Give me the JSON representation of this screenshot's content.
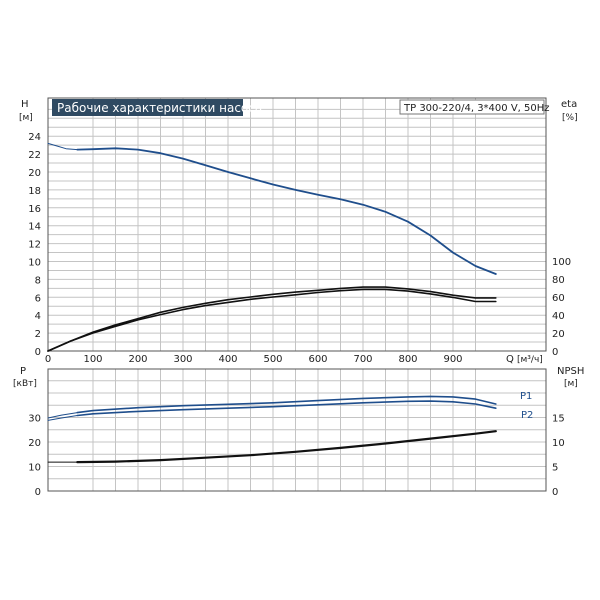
{
  "chart_data": [
    {
      "type": "line",
      "title": "Рабочие характеристики насоса",
      "model_label": "TP 300-220/4, 3*400 V, 50Hz",
      "xlabel": "Q [м³/ч]",
      "x_unit": "[м³/ч]",
      "x_ticks": [
        "0",
        "100",
        "200",
        "300",
        "400",
        "500",
        "600",
        "700",
        "800",
        "900"
      ],
      "xlim": [
        0,
        1000
      ],
      "left_axis": {
        "name": "H",
        "unit": "[м]",
        "ylim": [
          0,
          26
        ],
        "ticks": [
          "0",
          "2",
          "4",
          "6",
          "8",
          "10",
          "12",
          "14",
          "16",
          "18",
          "20",
          "22",
          "24"
        ]
      },
      "right_axis": {
        "name": "eta",
        "unit": "[%]",
        "ylim": [
          0,
          100
        ],
        "ticks": [
          "0",
          "20",
          "40",
          "60",
          "80",
          "100"
        ]
      },
      "grid": true,
      "series": [
        {
          "axis": "left",
          "color": "#1f4e8c",
          "style": "solid",
          "x": [
            65,
            100,
            150,
            200,
            250,
            300,
            350,
            400,
            450,
            500,
            550,
            600,
            650,
            700,
            750,
            800,
            850,
            900,
            950,
            995
          ],
          "y": [
            22.5,
            22.55,
            22.65,
            22.5,
            22.1,
            21.5,
            20.75,
            20.0,
            19.3,
            18.6,
            18.0,
            17.45,
            16.95,
            16.35,
            15.55,
            14.45,
            12.9,
            11.0,
            9.5,
            8.6
          ]
        },
        {
          "axis": "left",
          "color": "#1f4e8c",
          "style": "thin",
          "x": [
            0,
            20,
            40,
            65
          ],
          "y": [
            23.2,
            22.9,
            22.6,
            22.5
          ]
        },
        {
          "axis": "right",
          "color": "#111111",
          "style": "solid",
          "x": [
            0,
            50,
            100,
            150,
            200,
            250,
            300,
            350,
            400,
            450,
            500,
            550,
            600,
            650,
            700,
            750,
            800,
            850,
            900,
            950,
            995
          ],
          "y": [
            0,
            11,
            21,
            29,
            36,
            43,
            48.5,
            53,
            57,
            60,
            63,
            65.5,
            67.5,
            69.5,
            71,
            71,
            69,
            66,
            62,
            59,
            59
          ]
        },
        {
          "axis": "right",
          "color": "#111111",
          "style": "solid",
          "x": [
            0,
            50,
            100,
            150,
            200,
            250,
            300,
            350,
            400,
            450,
            500,
            550,
            600,
            650,
            700,
            750,
            800,
            850,
            900,
            950,
            995
          ],
          "y": [
            0,
            11,
            20,
            27.5,
            34.5,
            40.5,
            46,
            50.5,
            54,
            57.5,
            60,
            62.5,
            65,
            67,
            68.5,
            68.5,
            66.5,
            63.5,
            59.5,
            55,
            55
          ]
        }
      ]
    },
    {
      "type": "line",
      "left_axis": {
        "name": "P",
        "unit": "[кВт]",
        "ylim": [
          0,
          40
        ],
        "ticks": [
          "0",
          "10",
          "20",
          "30"
        ]
      },
      "right_axis": {
        "name": "NPSH",
        "unit": "[м]",
        "ylim": [
          0,
          20
        ],
        "ticks": [
          "0",
          "5",
          "10",
          "15"
        ]
      },
      "xlim": [
        0,
        1000
      ],
      "grid": true,
      "series": [
        {
          "name": "P1",
          "axis": "left",
          "color": "#1f4e8c",
          "style": "solid",
          "x": [
            65,
            100,
            200,
            300,
            400,
            500,
            600,
            700,
            800,
            850,
            900,
            950,
            995
          ],
          "y": [
            32.0,
            32.8,
            34.0,
            34.8,
            35.4,
            36.0,
            36.9,
            37.8,
            38.4,
            38.6,
            38.4,
            37.5,
            35.5
          ]
        },
        {
          "name": "",
          "axis": "left",
          "color": "#1f4e8c",
          "style": "thin",
          "x": [
            0,
            30,
            65
          ],
          "y": [
            29.8,
            31.0,
            32.0
          ]
        },
        {
          "name": "P2",
          "axis": "left",
          "color": "#1f4e8c",
          "style": "solid",
          "x": [
            65,
            100,
            200,
            300,
            400,
            500,
            600,
            700,
            800,
            850,
            900,
            950,
            995
          ],
          "y": [
            30.8,
            31.5,
            32.5,
            33.2,
            33.8,
            34.4,
            35.2,
            36.0,
            36.6,
            36.7,
            36.4,
            35.5,
            33.8
          ]
        },
        {
          "name": "",
          "axis": "left",
          "color": "#1f4e8c",
          "style": "thin",
          "x": [
            0,
            30,
            65
          ],
          "y": [
            28.8,
            29.8,
            30.8
          ]
        },
        {
          "name": "",
          "axis": "right",
          "color": "#111111",
          "style": "thick",
          "x": [
            65,
            150,
            250,
            350,
            450,
            550,
            650,
            750,
            850,
            950,
            995
          ],
          "y": [
            5.9,
            6.0,
            6.3,
            6.8,
            7.3,
            8.0,
            8.8,
            9.7,
            10.7,
            11.7,
            12.2
          ]
        },
        {
          "name": "",
          "axis": "right",
          "color": "#111111",
          "style": "thin",
          "x": [
            0,
            65
          ],
          "y": [
            5.9,
            5.9
          ]
        }
      ]
    }
  ]
}
